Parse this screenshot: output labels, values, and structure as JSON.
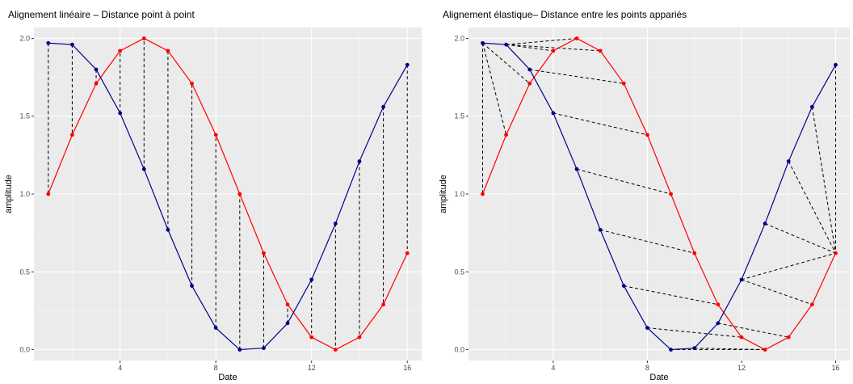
{
  "chart_data": [
    {
      "type": "line",
      "title": "Alignement linéaire – Distance point à point",
      "xlabel": "Date",
      "ylabel": "amplitude",
      "xlim": [
        0.4,
        16.6
      ],
      "ylim": [
        -0.07,
        2.07
      ],
      "xticks": [
        4,
        8,
        12,
        16
      ],
      "yticks": [
        0.0,
        0.5,
        1.0,
        1.5,
        2.0
      ],
      "grid": true,
      "series": [
        {
          "color": "#ff0000",
          "x": [
            1,
            2,
            3,
            4,
            5,
            6,
            7,
            8,
            9,
            10,
            11,
            12,
            13,
            14,
            15,
            16
          ],
          "y": [
            1.0,
            1.38,
            1.71,
            1.92,
            2.0,
            1.92,
            1.71,
            1.38,
            1.0,
            0.62,
            0.29,
            0.08,
            0.0,
            0.08,
            0.29,
            0.62
          ]
        },
        {
          "color": "#00008b",
          "x": [
            1,
            2,
            3,
            4,
            5,
            6,
            7,
            8,
            9,
            10,
            11,
            12,
            13,
            14,
            15,
            16
          ],
          "y": [
            1.97,
            1.96,
            1.8,
            1.52,
            1.16,
            0.77,
            0.41,
            0.14,
            0.0,
            0.01,
            0.17,
            0.45,
            0.81,
            1.21,
            1.56,
            1.83
          ]
        }
      ],
      "alignments": [
        [
          0,
          0
        ],
        [
          1,
          1
        ],
        [
          2,
          2
        ],
        [
          3,
          3
        ],
        [
          4,
          4
        ],
        [
          5,
          5
        ],
        [
          6,
          6
        ],
        [
          7,
          7
        ],
        [
          8,
          8
        ],
        [
          9,
          9
        ],
        [
          10,
          10
        ],
        [
          11,
          11
        ],
        [
          12,
          12
        ],
        [
          13,
          13
        ],
        [
          14,
          14
        ],
        [
          15,
          15
        ]
      ]
    },
    {
      "type": "line",
      "title": "Alignement élastique– Distance entre les points appariés",
      "xlabel": "Date",
      "ylabel": "amplitude",
      "xlim": [
        0.4,
        16.6
      ],
      "ylim": [
        -0.07,
        2.07
      ],
      "xticks": [
        4,
        8,
        12,
        16
      ],
      "yticks": [
        0.0,
        0.5,
        1.0,
        1.5,
        2.0
      ],
      "grid": true,
      "series": [
        {
          "color": "#ff0000",
          "x": [
            1,
            2,
            3,
            4,
            5,
            6,
            7,
            8,
            9,
            10,
            11,
            12,
            13,
            14,
            15,
            16
          ],
          "y": [
            1.0,
            1.38,
            1.71,
            1.92,
            2.0,
            1.92,
            1.71,
            1.38,
            1.0,
            0.62,
            0.29,
            0.08,
            0.0,
            0.08,
            0.29,
            0.62
          ]
        },
        {
          "color": "#00008b",
          "x": [
            1,
            2,
            3,
            4,
            5,
            6,
            7,
            8,
            9,
            10,
            11,
            12,
            13,
            14,
            15,
            16
          ],
          "y": [
            1.97,
            1.96,
            1.8,
            1.52,
            1.16,
            0.77,
            0.41,
            0.14,
            0.0,
            0.01,
            0.17,
            0.45,
            0.81,
            1.21,
            1.56,
            1.83
          ]
        }
      ],
      "alignments": [
        [
          0,
          0
        ],
        [
          0,
          1
        ],
        [
          0,
          2
        ],
        [
          1,
          3
        ],
        [
          1,
          4
        ],
        [
          1,
          5
        ],
        [
          2,
          6
        ],
        [
          3,
          7
        ],
        [
          4,
          8
        ],
        [
          5,
          9
        ],
        [
          6,
          10
        ],
        [
          7,
          11
        ],
        [
          8,
          12
        ],
        [
          9,
          12
        ],
        [
          10,
          13
        ],
        [
          11,
          14
        ],
        [
          11,
          15
        ],
        [
          12,
          15
        ],
        [
          13,
          15
        ],
        [
          14,
          15
        ],
        [
          15,
          15
        ]
      ]
    }
  ]
}
